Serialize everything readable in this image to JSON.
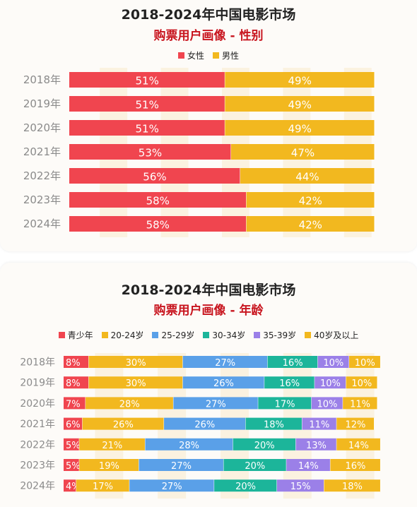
{
  "chart_data": [
    {
      "type": "bar",
      "stacked": true,
      "orientation": "horizontal",
      "title": "2018-2024年中国电影市场",
      "subtitle": "购票用户画像 - 性别",
      "categories": [
        "2018年",
        "2019年",
        "2020年",
        "2021年",
        "2022年",
        "2023年",
        "2024年"
      ],
      "series": [
        {
          "name": "女性",
          "color": "#f0454f",
          "values": [
            51,
            51,
            51,
            53,
            56,
            58,
            58
          ],
          "labels": [
            "51%",
            "51%",
            "51%",
            "53%",
            "56%",
            "58%",
            "58%"
          ]
        },
        {
          "name": "男性",
          "color": "#f2b81f",
          "values": [
            49,
            49,
            49,
            47,
            44,
            42,
            42
          ],
          "labels": [
            "49%",
            "49%",
            "49%",
            "47%",
            "44%",
            "42%",
            "42%"
          ]
        }
      ],
      "xlim": [
        0,
        100
      ],
      "legend_position": "top"
    },
    {
      "type": "bar",
      "stacked": true,
      "orientation": "horizontal",
      "title": "2018-2024年中国电影市场",
      "subtitle": "购票用户画像 - 年龄",
      "categories": [
        "2018年",
        "2019年",
        "2020年",
        "2021年",
        "2022年",
        "2023年",
        "2024年"
      ],
      "series": [
        {
          "name": "青少年",
          "color": "#f0454f",
          "values": [
            8,
            8,
            7,
            6,
            5,
            5,
            4
          ],
          "labels": [
            "8%",
            "8%",
            "7%",
            "6%",
            "5%",
            "5%",
            "4%"
          ]
        },
        {
          "name": "20-24岁",
          "color": "#f2b81f",
          "values": [
            30,
            30,
            28,
            26,
            21,
            19,
            17
          ],
          "labels": [
            "30%",
            "30%",
            "28%",
            "26%",
            "21%",
            "19%",
            "17%"
          ]
        },
        {
          "name": "25-29岁",
          "color": "#5aa0e8",
          "values": [
            27,
            26,
            27,
            26,
            28,
            27,
            27
          ],
          "labels": [
            "27%",
            "26%",
            "27%",
            "26%",
            "28%",
            "27%",
            "27%"
          ]
        },
        {
          "name": "30-34岁",
          "color": "#1cb59a",
          "values": [
            16,
            16,
            17,
            18,
            20,
            20,
            20
          ],
          "labels": [
            "16%",
            "16%",
            "17%",
            "18%",
            "20%",
            "20%",
            "20%"
          ]
        },
        {
          "name": "35-39岁",
          "color": "#9b80e8",
          "values": [
            10,
            10,
            10,
            11,
            13,
            14,
            15
          ],
          "labels": [
            "10%",
            "10%",
            "10%",
            "11%",
            "13%",
            "14%",
            "15%"
          ]
        },
        {
          "name": "40岁及以上",
          "color": "#f2b81f",
          "values": [
            10,
            10,
            11,
            12,
            14,
            16,
            18
          ],
          "labels": [
            "10%",
            "10%",
            "11%",
            "12%",
            "14%",
            "16%",
            "18%"
          ]
        }
      ],
      "xlim": [
        0,
        100
      ],
      "legend_position": "top"
    }
  ]
}
